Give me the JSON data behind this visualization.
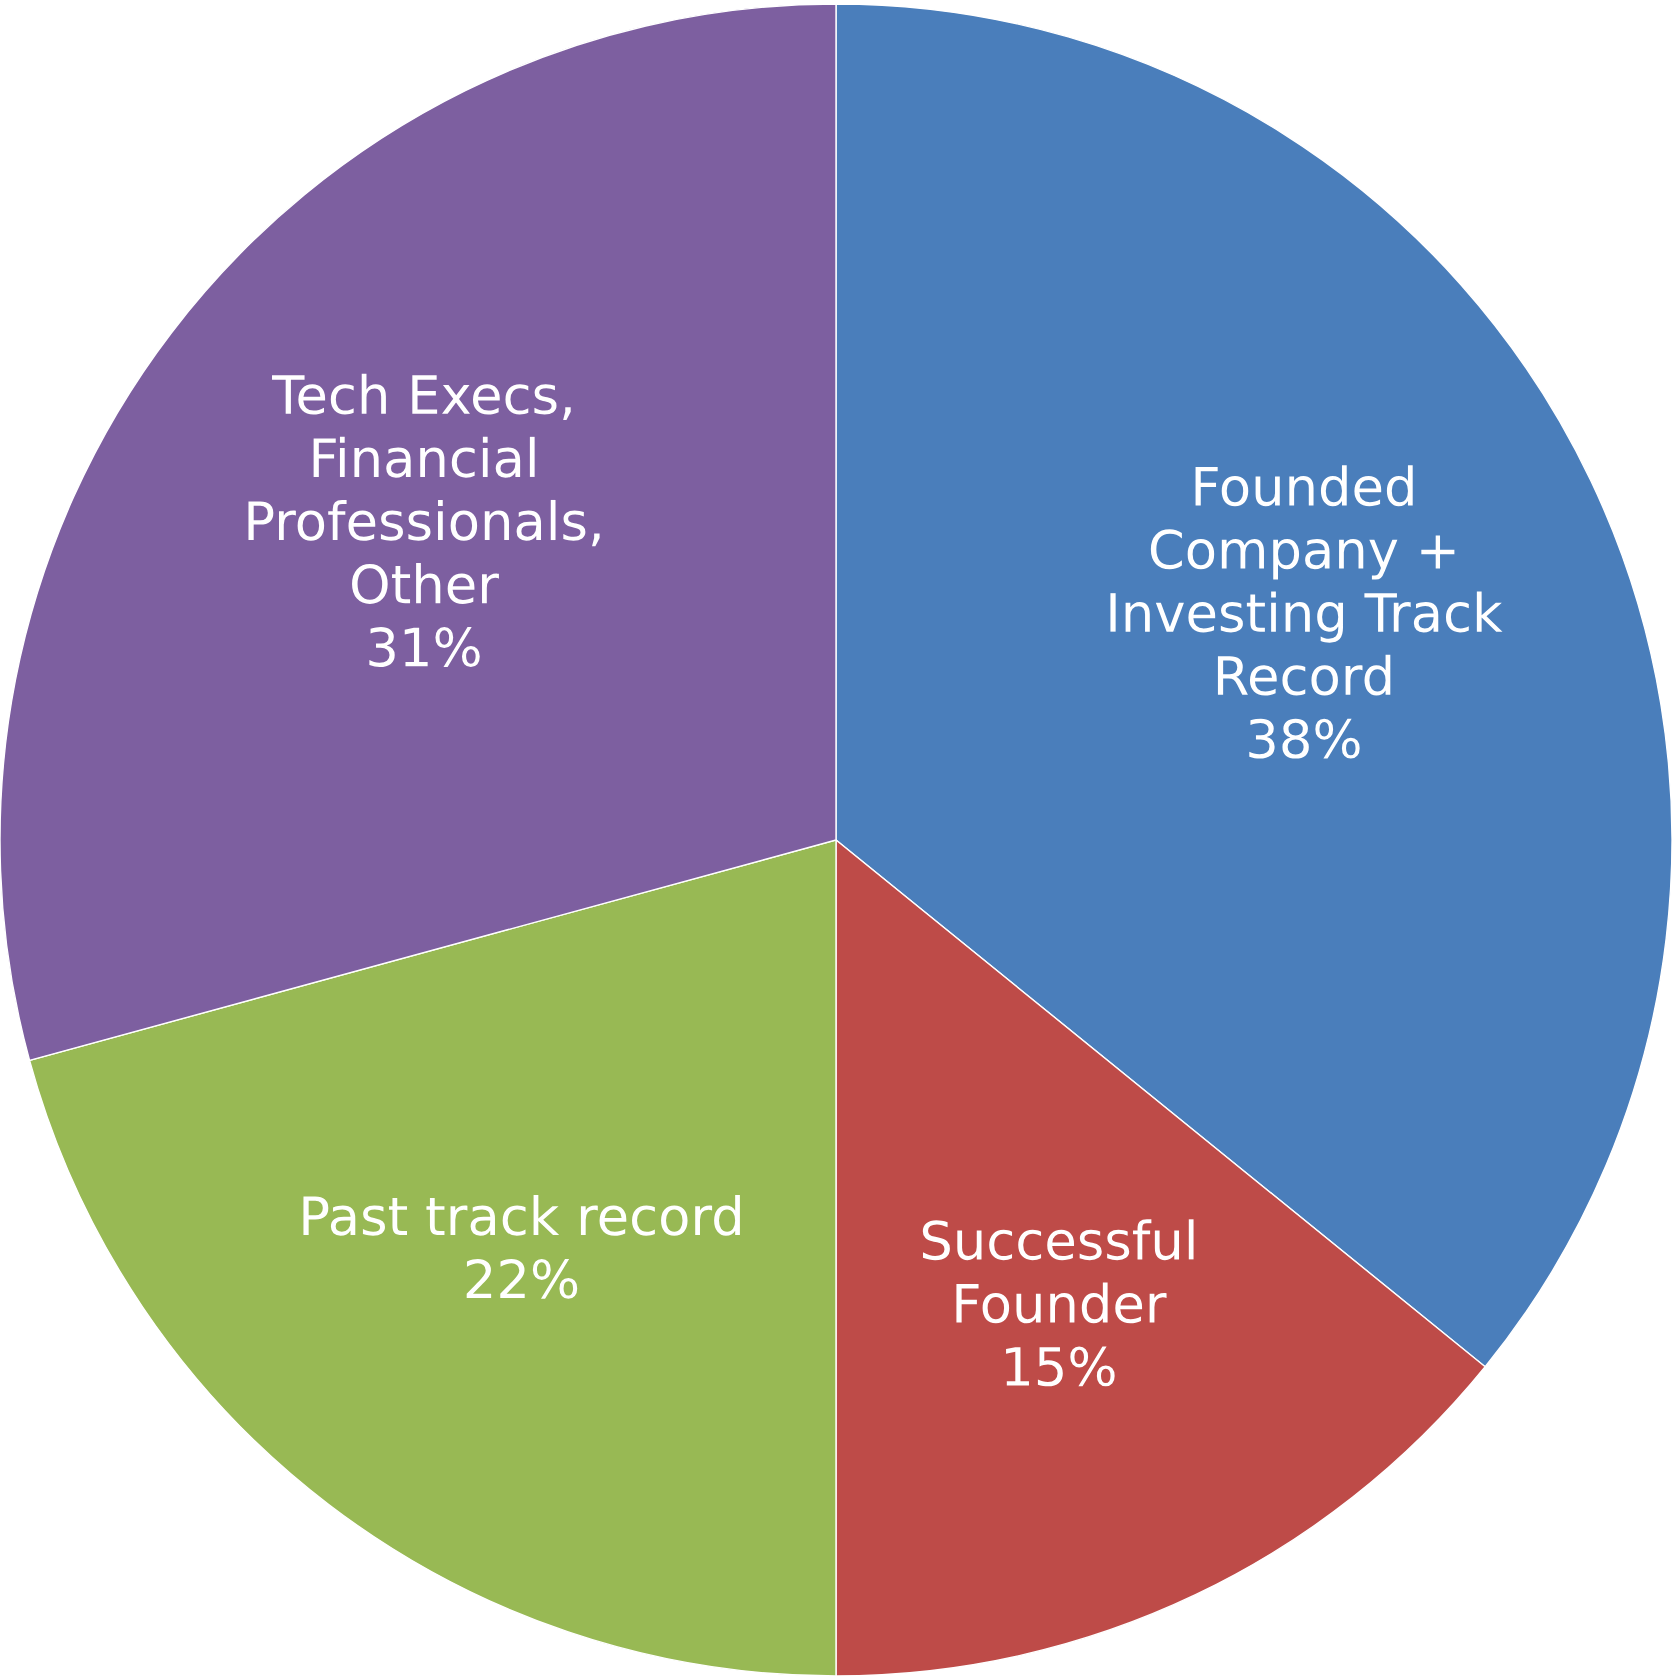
{
  "chart_data": {
    "type": "pie",
    "categories": [
      "Founded\nCompany +\nInvesting Track\nRecord",
      "Successful\nFounder",
      "Past track record",
      "Tech Execs,\nFinancial\nProfessionals,\nOther"
    ],
    "values": [
      38,
      15,
      22,
      31
    ],
    "value_labels": [
      "38%",
      "15%",
      "22%",
      "31%"
    ],
    "colors": [
      "#4a7ebb",
      "#be4b48",
      "#98b954",
      "#7d5fa0"
    ]
  }
}
